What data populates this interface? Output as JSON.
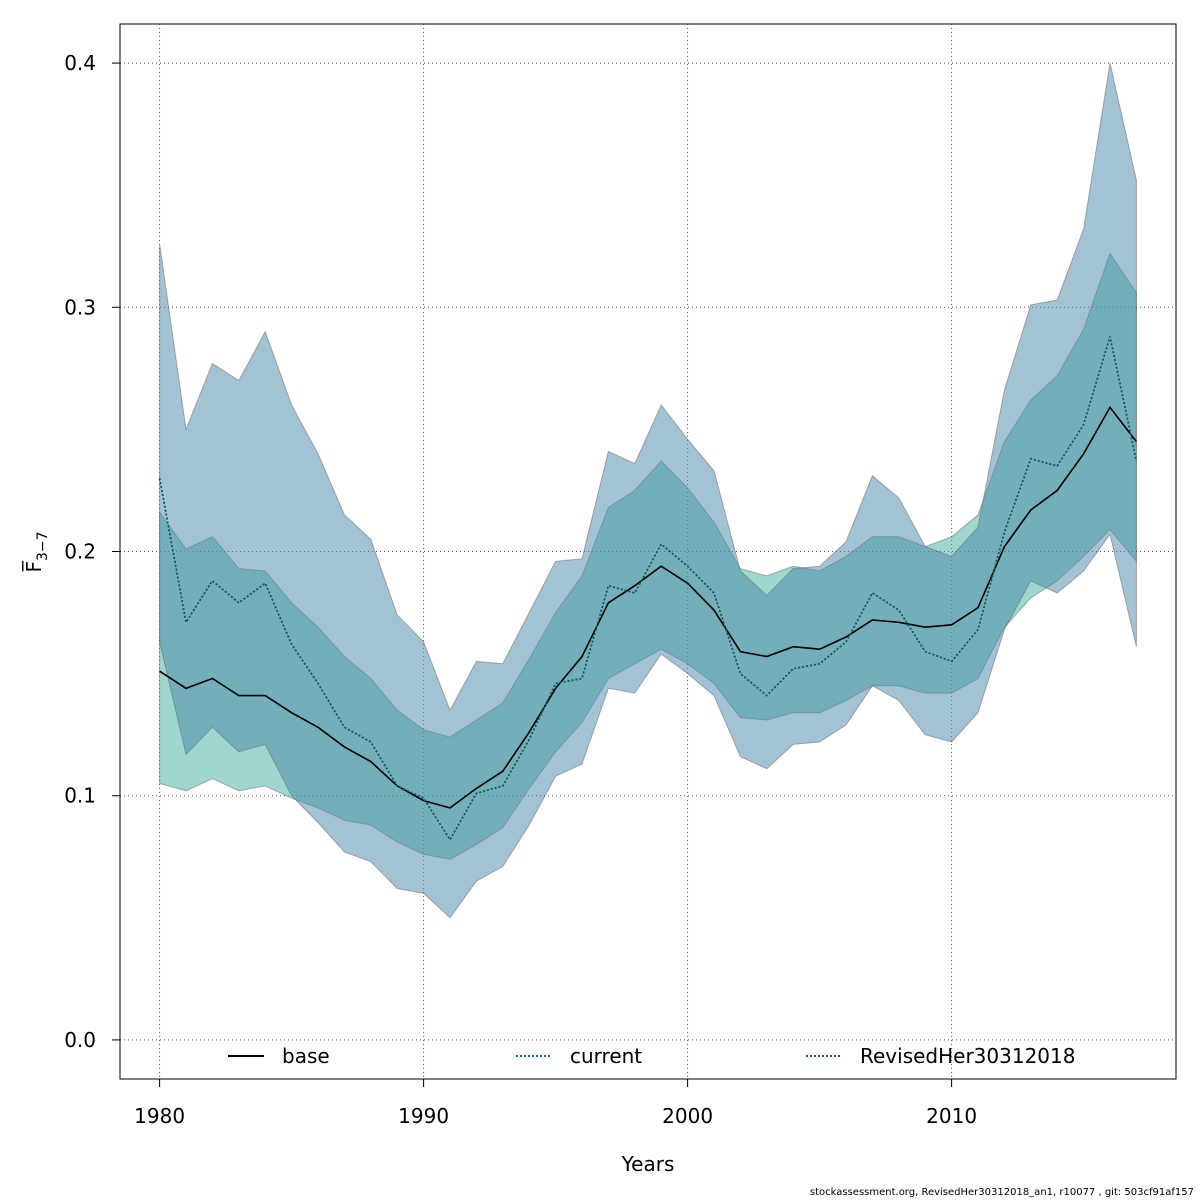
{
  "chart_data": {
    "type": "line",
    "xlabel": "Years",
    "ylabel": "F̅",
    "ylabel_subscript": "3−7",
    "xlim": [
      1978.5,
      2018.5
    ],
    "ylim": [
      -0.016,
      0.416
    ],
    "x_ticks": [
      1980,
      1990,
      2000,
      2010
    ],
    "y_ticks": [
      "0.0",
      "0.1",
      "0.2",
      "0.3",
      "0.4"
    ],
    "y_tick_values": [
      0.0,
      0.1,
      0.2,
      0.3,
      0.4
    ],
    "grid": true,
    "legend_position": "bottom",
    "x": [
      1980,
      1981,
      1982,
      1983,
      1984,
      1985,
      1986,
      1987,
      1988,
      1989,
      1990,
      1991,
      1992,
      1993,
      1994,
      1995,
      1996,
      1997,
      1998,
      1999,
      2000,
      2001,
      2002,
      2003,
      2004,
      2005,
      2006,
      2007,
      2008,
      2009,
      2010,
      2011,
      2012,
      2013,
      2014,
      2015,
      2016,
      2017
    ],
    "series": [
      {
        "name": "base",
        "color": "#000000",
        "dash": "solid",
        "values": [
          0.151,
          0.144,
          0.148,
          0.141,
          0.141,
          0.134,
          0.128,
          0.12,
          0.114,
          0.104,
          0.098,
          0.095,
          0.103,
          0.11,
          0.126,
          0.144,
          0.157,
          0.179,
          0.186,
          0.194,
          0.187,
          0.176,
          0.159,
          0.157,
          0.161,
          0.16,
          0.165,
          0.172,
          0.171,
          0.169,
          0.17,
          0.177,
          0.202,
          0.217,
          0.225,
          0.24,
          0.259,
          0.245
        ],
        "band_lower": [
          0.105,
          0.102,
          0.107,
          0.102,
          0.104,
          0.099,
          0.095,
          0.09,
          0.088,
          0.081,
          0.076,
          0.074,
          0.08,
          0.087,
          0.103,
          0.118,
          0.13,
          0.148,
          0.154,
          0.16,
          0.154,
          0.146,
          0.132,
          0.131,
          0.134,
          0.134,
          0.139,
          0.145,
          0.145,
          0.142,
          0.142,
          0.148,
          0.169,
          0.181,
          0.188,
          0.198,
          0.209,
          0.196
        ],
        "band_upper": [
          0.216,
          0.201,
          0.206,
          0.193,
          0.192,
          0.179,
          0.169,
          0.157,
          0.148,
          0.135,
          0.127,
          0.124,
          0.131,
          0.138,
          0.156,
          0.175,
          0.19,
          0.218,
          0.225,
          0.237,
          0.226,
          0.212,
          0.193,
          0.19,
          0.194,
          0.192,
          0.198,
          0.206,
          0.206,
          0.202,
          0.206,
          0.215,
          0.245,
          0.262,
          0.272,
          0.291,
          0.322,
          0.306
        ],
        "band_color": "#3fae9e"
      },
      {
        "name": "current",
        "color": "#1a6a8a",
        "dash": "dotted",
        "values": [
          0.23,
          0.171,
          0.188,
          0.179,
          0.187,
          0.162,
          0.146,
          0.128,
          0.122,
          0.104,
          0.099,
          0.082,
          0.101,
          0.104,
          0.123,
          0.146,
          0.148,
          0.186,
          0.183,
          0.203,
          0.194,
          0.183,
          0.15,
          0.141,
          0.152,
          0.154,
          0.163,
          0.183,
          0.176,
          0.159,
          0.155,
          0.168,
          0.208,
          0.238,
          0.235,
          0.252,
          0.288,
          0.237
        ],
        "band_lower": [
          0.163,
          0.117,
          0.128,
          0.118,
          0.121,
          0.1,
          0.089,
          0.077,
          0.073,
          0.062,
          0.06,
          0.05,
          0.065,
          0.071,
          0.088,
          0.108,
          0.113,
          0.144,
          0.142,
          0.158,
          0.15,
          0.141,
          0.116,
          0.111,
          0.121,
          0.122,
          0.129,
          0.145,
          0.139,
          0.125,
          0.122,
          0.134,
          0.168,
          0.188,
          0.183,
          0.192,
          0.207,
          0.161
        ],
        "band_upper": [
          0.326,
          0.25,
          0.277,
          0.27,
          0.29,
          0.26,
          0.24,
          0.215,
          0.205,
          0.174,
          0.163,
          0.135,
          0.155,
          0.154,
          0.175,
          0.196,
          0.197,
          0.241,
          0.236,
          0.26,
          0.246,
          0.233,
          0.192,
          0.182,
          0.193,
          0.194,
          0.204,
          0.231,
          0.222,
          0.202,
          0.198,
          0.21,
          0.266,
          0.301,
          0.303,
          0.332,
          0.4,
          0.352
        ],
        "band_color": "#4886a8"
      },
      {
        "name": "RevisedHer30312018",
        "color": "#0e5b4e",
        "dash": "dotted",
        "values": [
          0.23,
          0.171,
          0.188,
          0.179,
          0.187,
          0.162,
          0.146,
          0.128,
          0.122,
          0.104,
          0.099,
          0.082,
          0.101,
          0.104,
          0.123,
          0.146,
          0.148,
          0.186,
          0.183,
          0.203,
          0.194,
          0.183,
          0.15,
          0.141,
          0.152,
          0.154,
          0.163,
          0.183,
          0.176,
          0.159,
          0.155,
          0.168,
          0.208,
          0.238,
          0.235,
          0.252,
          0.288,
          0.237
        ]
      }
    ]
  },
  "footer": "stockassessment.org, RevisedHer30312018_an1, r10077 , git: 503cf91af157"
}
